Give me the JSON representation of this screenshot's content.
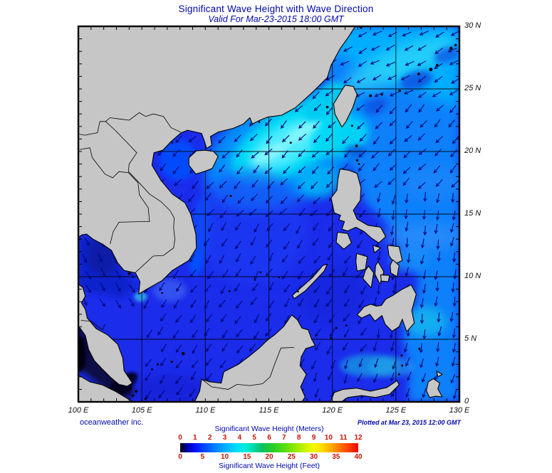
{
  "title": "Significant Wave Height with Wave Direction",
  "subtitle": "Valid For Mar-23-2015 18:00 GMT",
  "credits": {
    "left": "oceanweather inc.",
    "right": "Plotted at Mar 23, 2015 12:00 GMT"
  },
  "map": {
    "extent": {
      "lon_min": 100,
      "lon_max": 130,
      "lat_min": 0,
      "lat_max": 30
    },
    "grid_step_deg": 5,
    "tick_step_deg": 1,
    "lat_ticks": [
      {
        "label": "30 N",
        "lat": 30
      },
      {
        "label": "25 N",
        "lat": 25
      },
      {
        "label": "20 N",
        "lat": 20
      },
      {
        "label": "15 N",
        "lat": 15
      },
      {
        "label": "10 N",
        "lat": 10
      },
      {
        "label": "5 N",
        "lat": 5
      },
      {
        "label": "0",
        "lat": 0
      }
    ],
    "lon_ticks": [
      {
        "label": "100 E",
        "lon": 100
      },
      {
        "label": "105 E",
        "lon": 105
      },
      {
        "label": "110 E",
        "lon": 110
      },
      {
        "label": "115 E",
        "lon": 115
      },
      {
        "label": "120 E",
        "lon": 120
      },
      {
        "label": "125 E",
        "lon": 125
      },
      {
        "label": "130 E",
        "lon": 130
      }
    ]
  },
  "legend": {
    "meters_title": "Significant Wave Height (Meters)",
    "feet_title": "Significant Wave Height (Feet)",
    "meters_ticks": [
      "0",
      "1",
      "2",
      "3",
      "4",
      "5",
      "6",
      "7",
      "8",
      "9",
      "10",
      "11",
      "12"
    ],
    "feet_ticks": [
      "0",
      "5",
      "10",
      "15",
      "20",
      "25",
      "30",
      "35",
      "40"
    ],
    "gradient_stops": [
      [
        "0%",
        "#000000"
      ],
      [
        "2%",
        "#000060"
      ],
      [
        "5%",
        "#0000c8"
      ],
      [
        "9%",
        "#0018ff"
      ],
      [
        "14%",
        "#004cff"
      ],
      [
        "20%",
        "#0084ff"
      ],
      [
        "26%",
        "#00b4ff"
      ],
      [
        "31%",
        "#00d8ff"
      ],
      [
        "36%",
        "#00eee0"
      ],
      [
        "41%",
        "#00dca8"
      ],
      [
        "46%",
        "#10c060"
      ],
      [
        "52%",
        "#28cc28"
      ],
      [
        "58%",
        "#50dc14"
      ],
      [
        "64%",
        "#8ce800"
      ],
      [
        "70%",
        "#c8f400"
      ],
      [
        "75%",
        "#f8f800"
      ],
      [
        "80%",
        "#ffd800"
      ],
      [
        "85%",
        "#ffa800"
      ],
      [
        "90%",
        "#ff7000"
      ],
      [
        "95%",
        "#ff3800"
      ],
      [
        "100%",
        "#ee0800"
      ]
    ]
  },
  "colors": {
    "title_text": "#0008a8",
    "tick_label": "#111111",
    "legend_number": "#cc1100",
    "land": "#c6c6c6",
    "coastline": "#000000",
    "ocean_base": "#1b2ceb",
    "pacific": "#0a80fa",
    "east_china_light": "#00b2ff",
    "cyan_patch": "#00d8f4",
    "cyan_core": "#55eeff",
    "tonkin": "#0450ff",
    "gulf_thailand": "#0f22cc",
    "malacca_dark": "#0a0d47",
    "malacca_black": "#03041f",
    "arrow": "#000878",
    "grid": "#000000",
    "frame": "#000000",
    "background": "#ffffff"
  }
}
